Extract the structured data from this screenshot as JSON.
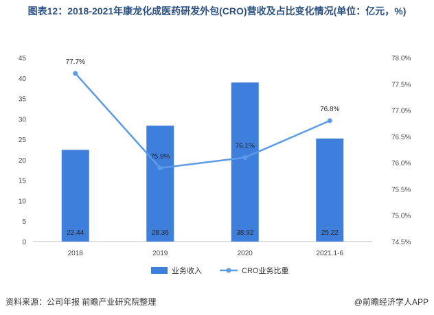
{
  "title": "图表12：2018-2021年康龙化成医药研发外包(CRO)营收及占比变化情况(单位：亿元，%)",
  "footer": {
    "source": "资料来源：公司年报 前瞻产业研究院整理",
    "brand": "@前瞻经济学人APP"
  },
  "colors": {
    "bar": "#3f7fdc",
    "line": "#5b9be6",
    "title": "#2b4f80"
  },
  "chart_data": {
    "type": "bar",
    "categories": [
      "2018",
      "2019",
      "2020",
      "2021.1-6"
    ],
    "series": [
      {
        "name": "业务收入",
        "type": "bar",
        "axis": "left",
        "values": [
          22.44,
          28.36,
          38.92,
          25.22
        ]
      },
      {
        "name": "CRO业务比重",
        "type": "line",
        "axis": "right",
        "values": [
          77.7,
          75.9,
          76.1,
          76.8
        ]
      }
    ],
    "bar_labels": [
      "22.44",
      "28.36",
      "38.92",
      "25.22"
    ],
    "line_labels": [
      "77.7%",
      "75.9%",
      "76.1%",
      "76.8%"
    ],
    "ylim_left": [
      0,
      45
    ],
    "ylim_right": [
      74.5,
      78.0
    ],
    "left_ticks": [
      "0",
      "5",
      "10",
      "15",
      "20",
      "25",
      "30",
      "35",
      "40",
      "45"
    ],
    "right_ticks": [
      "74.5%",
      "75.0%",
      "75.5%",
      "76.0%",
      "76.5%",
      "77.0%",
      "77.5%",
      "78.0%"
    ],
    "legend_position": "bottom-center",
    "grid": false
  }
}
